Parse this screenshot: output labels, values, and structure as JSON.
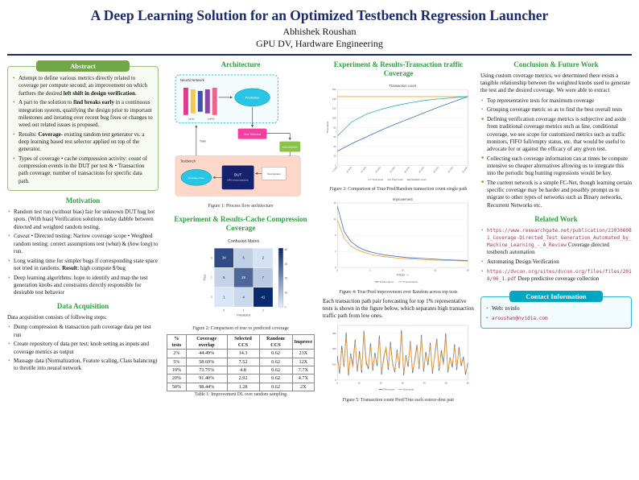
{
  "header": {
    "title": "A Deep Learning Solution for an Optimized Testbench Regression Launcher",
    "author": "Abhishek Roushan",
    "affiliation": "GPU DV, Hardware Engineering"
  },
  "abstract": {
    "title": "Abstract",
    "bullets": [
      "Attempt to define various metrics directly related to coverage per compute second; an improvement on which furthers the desired <b>left shift in design verification</b>.",
      "A part to the solution to <b>find breaks early</b> in a continuous integration system, qualifying the design prior to important milestones and iterating over recent bug fixes or changes to weed out related issues is proposed.",
      "Results: <b>Coverage</b>- existing random test generator vs. a deep learning based test selector applied on top of the generator.",
      "Types of coverage • cache compression activity: count of compression events in the DUT per test &amp; • Transaction path coverage: number of transactions for specific data path."
    ]
  },
  "motivation": {
    "title": "Motivation",
    "bullets": [
      "Random test run (without bias) fair for unknown DUT bug hot spots. (With bias) Verification solutions today dabble between directed and weighted random testing.",
      "<i>Caveat</i> • Directed testing: Narrow coverage scope • Weighted random testing: correct assumptions test (<i>what</i>) &amp; (<i>how long</i>) to run.",
      "Long waiting time for simpler bugs if corresponding state space not tried in randoms. <b>Result</b>: high compute $/bug",
      "Deep learning algorithms: hope to identify and map the test generation knobs and constraints directly responsible for desirable test behavior"
    ]
  },
  "data_acquisition": {
    "title": "Data Acquisition",
    "intro": "Data acquisition consists of following steps:",
    "bullets": [
      "Dump compression &amp; transaction path coverage data per test run",
      "Create repository of data per test: knob setting as inputs and coverage metrics as output",
      "Massage data (Normalization, Feature scaling, Class balancing) to throttle into neural network"
    ]
  },
  "architecture": {
    "title": "Architecture",
    "figure_caption": "Figure 1: Process flow architecture",
    "diagram": {
      "neural_network": "Neural Network",
      "prediction": "Prediction",
      "inputs": "Inputs",
      "labels": "Labels",
      "train": "Train",
      "test_selector": "Test Selector",
      "knob_constraints": "knob constraints",
      "testbench": "Testbench",
      "dut": "DUT",
      "dut_sub": "(GPU memory subsystem)",
      "test_vectors": "Test Vectors",
      "coverage_data": "Coverage Data"
    }
  },
  "cache_section": {
    "title": "Experiment & Results-Cache Compression Coverage",
    "figure_caption": "Figure 2: Comparison of true vs predicted coverage",
    "table_caption": "Table 1: Improvement DL over random sampling",
    "table": {
      "headers": [
        "% tests",
        "Coverage overlap",
        "Selected CCS",
        "Random CCS",
        "Improve"
      ],
      "rows": [
        [
          "2%",
          "44.49%",
          "14.3",
          "0.62",
          "23X"
        ],
        [
          "5%",
          "58.69%",
          "7.52",
          "0.62",
          "12X"
        ],
        [
          "10%",
          "73.75%",
          "4.8",
          "0.62",
          "7.7X"
        ],
        [
          "20%",
          "91.40%",
          "2.92",
          "0.62",
          "4.7X"
        ],
        [
          "50%",
          "98.44%",
          "1.28",
          "0.62",
          "2X"
        ]
      ]
    }
  },
  "transaction_section": {
    "title": "Experiment & Results-Transaction traffic Coverage",
    "figure3_caption": "Figure 3: Comparison of True/Pred/Random transaction count single path",
    "figure4_caption": "Figure 4: True/Pred improvement over Random across top tests",
    "paragraph": "Each transaction path pair forecasting for top 1% representative tests is shown in the figure below, which separates high transaction traffic path from low ones.",
    "figure5_caption": "Figure 5: Transaction count Pred/True each source-dest pair"
  },
  "conclusion": {
    "title": "Conclusion & Future Work",
    "intro": "Using custom coverage metrics, we determined there exists a tangible relationship between the weighted knobs used to generate the test and the desired coverage. We were able to extract",
    "bullets": [
      "Top representative tests for maximum coverage",
      "Grouping coverage metric so as to find the best overall tests"
    ],
    "bullets2": [
      "Defining verification coverage metrics is subjective and aside from traditional coverage metrics such as line, conditional coverage, we see scope for customized metrics such as traffic monitors, FIFO full/empty status, etc. that would be useful to advocate for or against the efficacy of any given test.",
      "Collecting such coverage information can at times be compute intensive so cheaper alternatives allowing us to integrate this into the periodic bug hunting regressions would be key.",
      "The current network is a simple FC-Net, though learning certain specific coverage may be harder and possibly prompt us to migrate to other types of networks such as Binary networks, Recurrent Networks etc."
    ]
  },
  "related_work": {
    "title": "Related Work",
    "items": [
      {
        "url": "https://www.researchgate.net/publication/220306081_Coverage-Directed_Test_Generation_Automated_by_Machine_Learning_-_A_Review",
        "text": " Coverage directed testbench automation"
      },
      {
        "url": "",
        "text": "Automating Design Verification"
      },
      {
        "url": "https://dvcon.org/sites/dvcon.org/files/files/2018/06_1.pdf",
        "text": " Deep predictive coverage collection"
      }
    ]
  },
  "contact": {
    "title": "Contact Information",
    "web": "Web: nvinfo",
    "email": "aroushan@nvidia.com"
  },
  "charts": {
    "fig2": {
      "type": "heatmap",
      "title": "Confusion Matrix",
      "cells": [
        [
          34,
          6,
          2
        ],
        [
          5,
          28,
          7
        ],
        [
          1,
          4,
          41
        ]
      ],
      "x_labels": [
        "0",
        "1",
        "2"
      ],
      "y_labels": [
        "0",
        "1",
        "2"
      ],
      "xlabel": "Predicted",
      "ylabel": "True",
      "colorbar_ticks": [
        0,
        10,
        20,
        30,
        40
      ]
    },
    "fig3": {
      "type": "line",
      "title": "Transaction count",
      "ylabel": "Thousands",
      "ylim": [
        0,
        160
      ],
      "y_ticks": [
        0,
        20,
        40,
        60,
        80,
        100,
        120,
        140,
        160
      ],
      "rotate_x": true,
      "x_ticks": [
        "5.00%",
        "10.00%",
        "15.00%",
        "20.00%",
        "25.00%",
        "30.00%",
        "35.00%",
        "40.00%",
        "45.00%",
        "50.00%"
      ],
      "series": [
        {
          "name": "True count",
          "color": "#f39c2c",
          "values": [
            145,
            145,
            145,
            145,
            145,
            145,
            145,
            145,
            145,
            145
          ]
        },
        {
          "name": "Pred count",
          "color": "#2ab7a9",
          "values": [
            62,
            92,
            108,
            118,
            126,
            132,
            137,
            140,
            143,
            145
          ]
        },
        {
          "name": "Random count",
          "color": "#3f6ec4",
          "values": [
            30,
            46,
            60,
            74,
            87,
            99,
            111,
            123,
            134,
            145
          ]
        }
      ]
    },
    "fig4": {
      "type": "line",
      "title": "Improvement",
      "xlabel": "%Tests -->",
      "ylim": [
        0,
        16
      ],
      "y_ticks": [
        0,
        4,
        8,
        12,
        16
      ],
      "x_ticks": [
        "0",
        "5",
        "10",
        "15",
        "20"
      ],
      "series": [
        {
          "name": "% true improv",
          "color": "#3f6ec4",
          "values": [
            15.2,
            8.9,
            6.4,
            5.1,
            4.3,
            3.8,
            3.4,
            3.1,
            2.9,
            2.7,
            2.5,
            2.4,
            2.3,
            2.2,
            2.1,
            2.0,
            1.9,
            1.85,
            1.8,
            1.75
          ]
        },
        {
          "name": "% pred improv",
          "color": "#f39c2c",
          "values": [
            11.8,
            7.2,
            5.3,
            4.3,
            3.7,
            3.2,
            2.9,
            2.7,
            2.5,
            2.3,
            2.2,
            2.1,
            2.0,
            1.9,
            1.85,
            1.8,
            1.75,
            1.7,
            1.65,
            1.6
          ]
        }
      ]
    },
    "fig5": {
      "type": "line",
      "title": "",
      "ylim": [
        0,
        350
      ],
      "y_ticks": [
        0,
        100,
        200,
        300
      ],
      "x_ticks": [
        "0",
        "10",
        "20",
        "30",
        "40",
        "50",
        "60"
      ],
      "series": [
        {
          "name": "Pred count",
          "color": "#3f6ec4",
          "values": [
            155,
            40,
            220,
            85,
            305,
            30,
            170,
            95,
            260,
            55,
            185,
            45,
            315,
            120,
            70,
            235,
            60,
            175,
            90,
            285,
            35,
            145,
            205,
            65,
            245,
            105,
            50,
            195,
            75,
            320,
            30,
            160,
            85,
            250,
            45,
            130,
            225,
            70,
            290,
            55,
            180,
            95,
            240,
            40,
            155,
            265,
            60,
            190,
            110,
            300,
            50,
            145,
            80,
            230,
            65,
            210,
            90,
            150,
            35,
            110
          ]
        },
        {
          "name": "True count",
          "color": "#f39c2c",
          "values": [
            130,
            60,
            195,
            100,
            280,
            45,
            160,
            80,
            245,
            70,
            165,
            60,
            295,
            100,
            85,
            215,
            75,
            160,
            105,
            265,
            50,
            130,
            215,
            80,
            230,
            95,
            65,
            180,
            90,
            300,
            45,
            150,
            100,
            235,
            60,
            120,
            210,
            85,
            275,
            70,
            165,
            110,
            225,
            55,
            145,
            250,
            75,
            175,
            95,
            280,
            65,
            135,
            95,
            215,
            80,
            195,
            105,
            135,
            50,
            95
          ]
        }
      ]
    }
  }
}
